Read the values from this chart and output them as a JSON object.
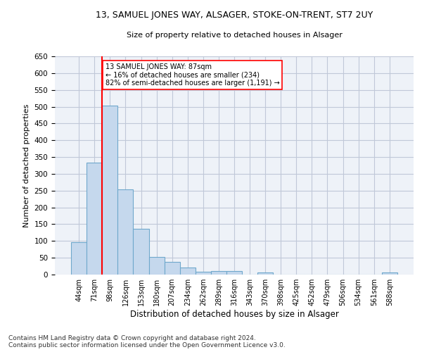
{
  "title": "13, SAMUEL JONES WAY, ALSAGER, STOKE-ON-TRENT, ST7 2UY",
  "subtitle": "Size of property relative to detached houses in Alsager",
  "xlabel": "Distribution of detached houses by size in Alsager",
  "ylabel": "Number of detached properties",
  "categories": [
    "44sqm",
    "71sqm",
    "98sqm",
    "126sqm",
    "153sqm",
    "180sqm",
    "207sqm",
    "234sqm",
    "262sqm",
    "289sqm",
    "316sqm",
    "343sqm",
    "370sqm",
    "398sqm",
    "425sqm",
    "452sqm",
    "479sqm",
    "506sqm",
    "534sqm",
    "561sqm",
    "588sqm"
  ],
  "values": [
    97,
    333,
    504,
    253,
    137,
    53,
    37,
    21,
    9,
    10,
    10,
    0,
    6,
    0,
    0,
    0,
    0,
    0,
    0,
    0,
    6
  ],
  "bar_color": "#c5d8ed",
  "bar_edge_color": "#6fa8cc",
  "grid_color": "#c0c8d8",
  "background_color": "#eef2f8",
  "annotation_line1": "13 SAMUEL JONES WAY: 87sqm",
  "annotation_line2": "← 16% of detached houses are smaller (234)",
  "annotation_line3": "82% of semi-detached houses are larger (1,191) →",
  "vline_x": 1.5,
  "ylim": [
    0,
    650
  ],
  "yticks": [
    0,
    50,
    100,
    150,
    200,
    250,
    300,
    350,
    400,
    450,
    500,
    550,
    600,
    650
  ],
  "footer_line1": "Contains HM Land Registry data © Crown copyright and database right 2024.",
  "footer_line2": "Contains public sector information licensed under the Open Government Licence v3.0."
}
